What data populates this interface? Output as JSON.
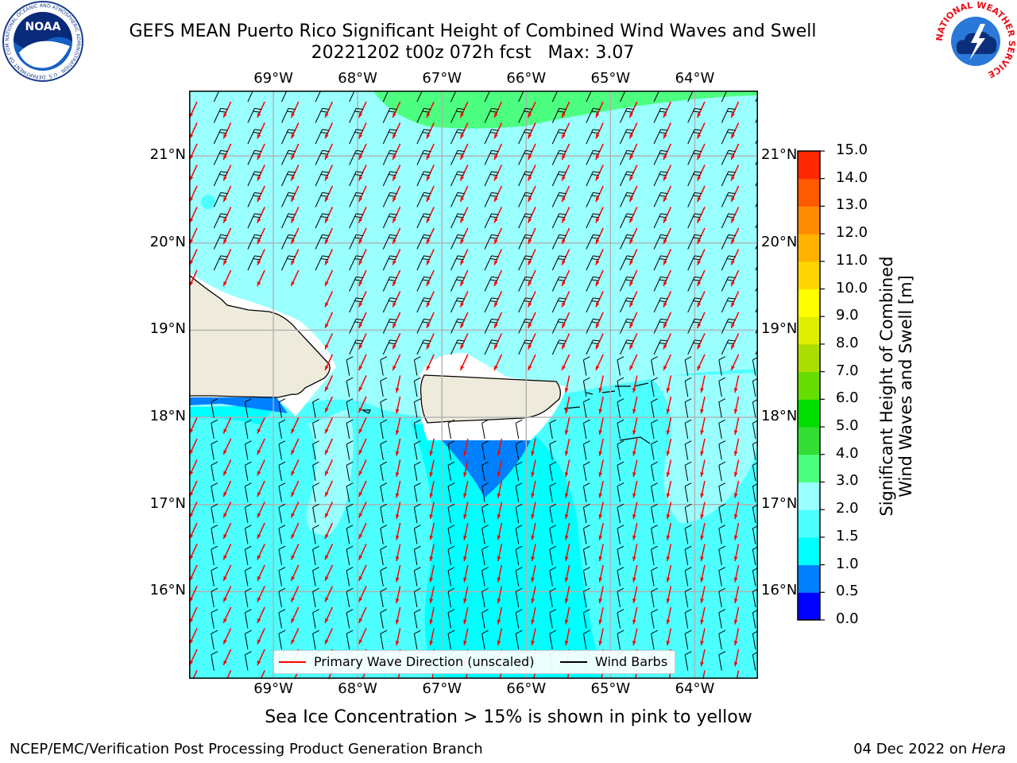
{
  "title": {
    "line1": "GEFS MEAN Puerto Rico Significant Height of Combined Wind Waves and Swell",
    "line2": "20221202 t00z 072h fcst   Max: 3.07"
  },
  "map": {
    "lon_ticks": [
      "69°W",
      "68°W",
      "67°W",
      "66°W",
      "65°W",
      "64°W"
    ],
    "lat_ticks": [
      "21°N",
      "20°N",
      "19°N",
      "18°N",
      "17°N",
      "16°N"
    ],
    "extent": {
      "lon_min": -70.0,
      "lon_max": -63.25,
      "lat_min": 15.0,
      "lat_max": 21.75
    },
    "land_color": "#efebdc",
    "ocean_color": "#99ffff",
    "grid_color": "#b0b0b0"
  },
  "legend": {
    "wave_label": "Primary Wave Direction (unscaled)",
    "barb_label": "Wind Barbs",
    "wave_color": "#ff0000",
    "barb_color": "#000000"
  },
  "colorbar": {
    "title_line1": "Significant Height of Combined",
    "title_line2": "Wind Waves and Swell [m]",
    "labels": [
      "15.0",
      "14.0",
      "13.0",
      "12.0",
      "11.0",
      "10.0",
      "9.0",
      "8.0",
      "7.0",
      "6.0",
      "5.0",
      "4.0",
      "3.0",
      "2.0",
      "1.5",
      "1.0",
      "0.5",
      "0.0"
    ],
    "colors": [
      "#0000ff",
      "#0080ff",
      "#00ffff",
      "#4dffff",
      "#99ffff",
      "#4dff80",
      "#33dd33",
      "#00dd00",
      "#66dd00",
      "#aadd00",
      "#ddee00",
      "#ffff00",
      "#ffd700",
      "#ffb300",
      "#ff8c00",
      "#ff5a00",
      "#ff2800"
    ]
  },
  "ice_note": "Sea Ice Concentration > 15% is shown in pink to yellow",
  "footer": {
    "left": "NCEP/EMC/Verification Post Processing Product Generation Branch",
    "right_date": "04 Dec 2022 on ",
    "right_host": "Hera"
  },
  "logos": {
    "noaa_text": "NOAA",
    "noaa_ring": "NATIONAL OCEANIC AND ATMOSPHERIC ADMINISTRATION · U.S. DEPARTMENT OF COMMERCE",
    "nws_ring": "NATIONAL WEATHER SERVICE"
  }
}
